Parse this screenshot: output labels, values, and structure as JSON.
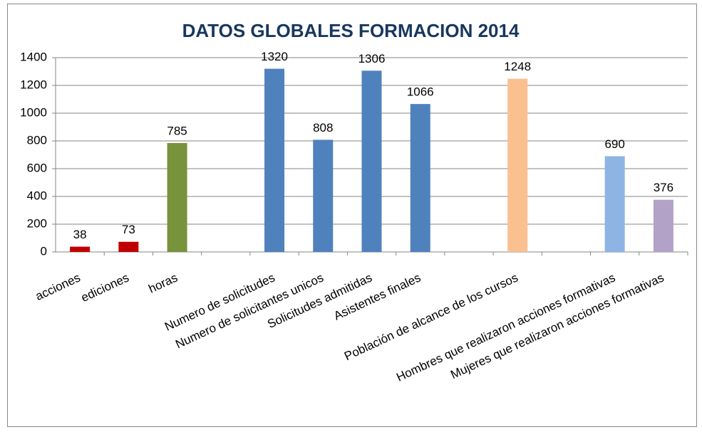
{
  "chart_data": {
    "type": "bar",
    "title": "DATOS GLOBALES FORMACION 2014",
    "categories": [
      "acciones",
      "ediciones",
      "horas",
      null,
      "Numero de solicitudes",
      "Numero de solicitantes unicos",
      "Solicitudes admitidas",
      "Asistentes finales",
      null,
      "Población de alcance de los cursos",
      null,
      "Hombres que realizaron acciones formativas",
      "Mujeres que realizaron acciones formativas"
    ],
    "values": [
      38,
      73,
      785,
      null,
      1320,
      808,
      1306,
      1066,
      null,
      1248,
      null,
      690,
      376
    ],
    "colors": [
      "#c00000",
      "#c00000",
      "#77933c",
      null,
      "#4f81bd",
      "#4f81bd",
      "#4f81bd",
      "#4f81bd",
      null,
      "#fac090",
      null,
      "#8eb4e3",
      "#b3a2c7"
    ],
    "ylim": [
      0,
      1400
    ],
    "yticks": [
      0,
      200,
      400,
      600,
      800,
      1000,
      1200,
      1400
    ],
    "grid": true
  }
}
